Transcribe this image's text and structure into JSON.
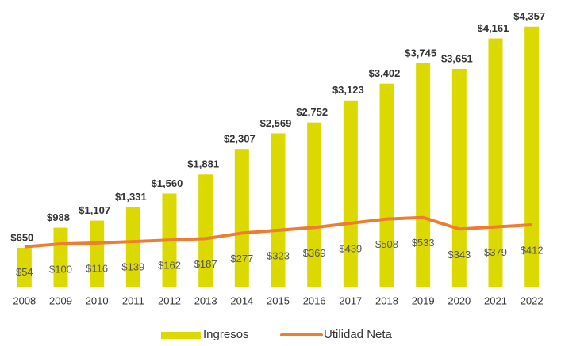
{
  "chart_data": {
    "type": "bar_line",
    "categories": [
      "2008",
      "2009",
      "2010",
      "2011",
      "2012",
      "2013",
      "2014",
      "2015",
      "2016",
      "2017",
      "2018",
      "2019",
      "2020",
      "2021",
      "2022"
    ],
    "series": [
      {
        "name": "Ingresos",
        "type": "bar",
        "color": "#dcd900",
        "values": [
          650,
          988,
          1107,
          1331,
          1560,
          1881,
          2307,
          2569,
          2752,
          3123,
          3402,
          3745,
          3651,
          4161,
          4357
        ],
        "value_labels": [
          "$650",
          "$988",
          "$1,107",
          "$1,331",
          "$1,560",
          "$1,881",
          "$2,307",
          "$2,569",
          "$2,752",
          "$3,123",
          "$3,402",
          "$3,745",
          "$3,651",
          "$4,161",
          "$4,357"
        ]
      },
      {
        "name": "Utilidad Neta",
        "type": "line",
        "color": "#ed7d31",
        "axis": "y2",
        "values": [
          54,
          100,
          116,
          139,
          162,
          187,
          277,
          323,
          369,
          439,
          508,
          533,
          343,
          379,
          412
        ],
        "value_labels": [
          "$54",
          "$100",
          "$116",
          "$139",
          "$162",
          "$187",
          "$277",
          "$323",
          "$369",
          "$439",
          "$508",
          "$533",
          "$343",
          "$379",
          "$412"
        ]
      }
    ],
    "ylim": [
      0,
      4500
    ],
    "y2lim": [
      -600,
      3800
    ],
    "legend": "bottom"
  }
}
